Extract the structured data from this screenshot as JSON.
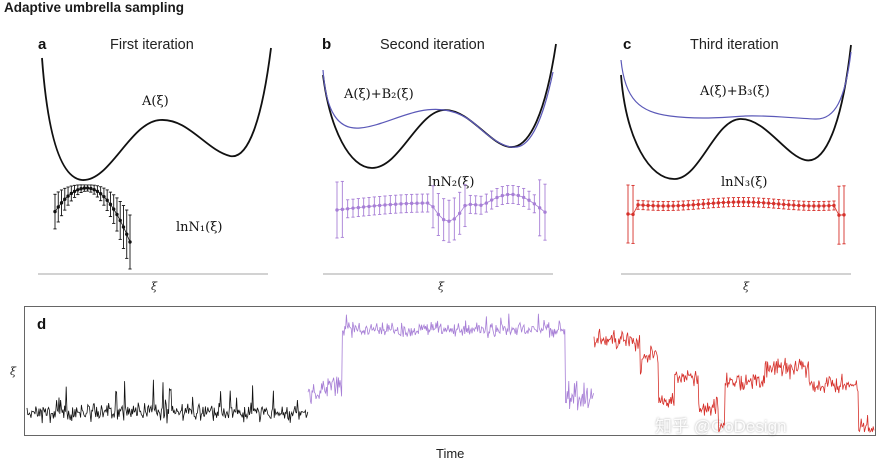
{
  "title": "Adaptive umbrella sampling",
  "panels": [
    {
      "letter": "a",
      "title": "First iteration",
      "curve_label": "A(ξ)",
      "hist_label": "lnN₁(ξ)",
      "axis": "ξ"
    },
    {
      "letter": "b",
      "title": "Second iteration",
      "curve_label": "A(ξ)+B₂(ξ)",
      "hist_label": "lnN₂(ξ)",
      "axis": "ξ"
    },
    {
      "letter": "c",
      "title": "Third iteration",
      "curve_label": "A(ξ)+B₃(ξ)",
      "hist_label": "lnN₃(ξ)",
      "axis": "ξ"
    }
  ],
  "trajectory": {
    "letter": "d",
    "ylabel": "ξ",
    "xlabel": "Time"
  },
  "watermark": "知乎 @GoDesign",
  "colors": {
    "black": "#111111",
    "purple": "#a77fd6",
    "blue": "#5b59b8",
    "red": "#d6312b",
    "frame": "#666666"
  }
}
